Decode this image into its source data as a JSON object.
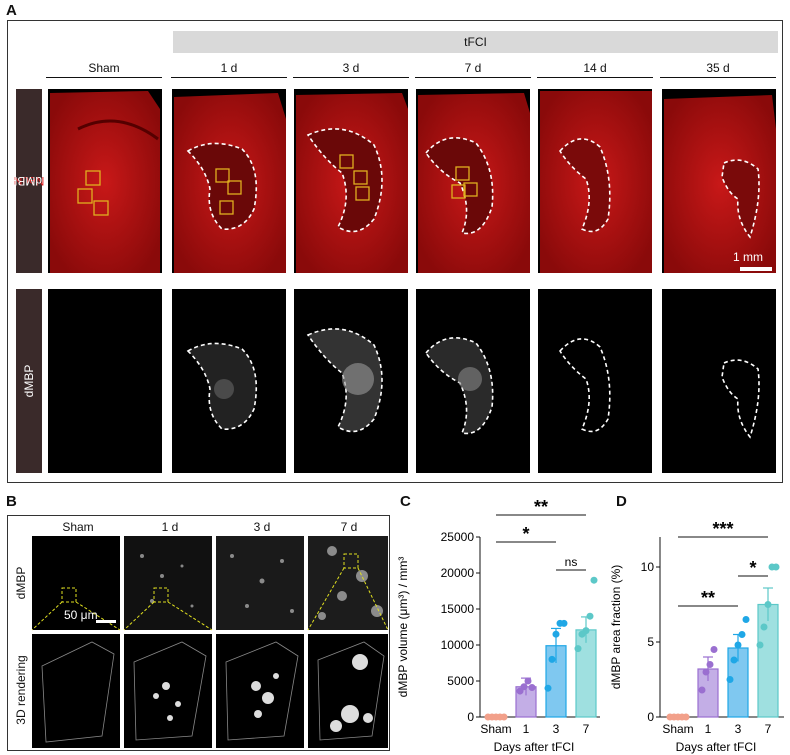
{
  "panels": {
    "a": "A",
    "b": "B",
    "c": "C",
    "d": "D"
  },
  "panelA": {
    "group_label": "tFCI",
    "columns": [
      "Sham",
      "1 d",
      "3 d",
      "7 d",
      "14 d",
      "35 d"
    ],
    "row1_label_red": "NeuN",
    "row1_label_white": " / dMBP",
    "row2_label": "dMBP",
    "scale_bar": "1 mm",
    "colors": {
      "neun": "#d81b1b",
      "dmbp": "#ffffff",
      "roi": "#e0b020"
    }
  },
  "panelB": {
    "columns": [
      "Sham",
      "1 d",
      "3 d",
      "7 d"
    ],
    "row1_label": "dMBP",
    "row2_label": "3D rendering",
    "scale_bar": "50 μm"
  },
  "chart_data": [
    {
      "type": "bar",
      "panel": "C",
      "categories": [
        "Sham",
        "1",
        "3",
        "7"
      ],
      "values": [
        0,
        4200,
        9900,
        12100
      ],
      "errors": [
        0,
        1200,
        2400,
        1800
      ],
      "points": [
        [
          0,
          0,
          0,
          0,
          0
        ],
        [
          3600,
          4200,
          5000,
          4100
        ],
        [
          4000,
          8000,
          11500,
          13000,
          13000
        ],
        [
          9500,
          11500,
          12000,
          14000,
          19000
        ]
      ],
      "xlabel": "Days after tFCI",
      "ylabel": "dMBP volume (μm³) / mm³",
      "ylim": [
        0,
        25000
      ],
      "yticks": [
        0,
        5000,
        10000,
        15000,
        20000,
        25000
      ],
      "bar_colors": [
        "#f2a08a",
        "#c3aee6",
        "#7fc8f0",
        "#9fe0e0"
      ],
      "point_colors": [
        "#f2a08a",
        "#9a6fd0",
        "#1fa7e6",
        "#5cc8c8"
      ],
      "significance": [
        {
          "from": "Sham",
          "to": "7",
          "label": "**"
        },
        {
          "from": "Sham",
          "to": "3",
          "label": "*"
        },
        {
          "from": "3",
          "to": "7",
          "label": "ns"
        }
      ]
    },
    {
      "type": "bar",
      "panel": "D",
      "categories": [
        "Sham",
        "1",
        "3",
        "7"
      ],
      "values": [
        0,
        3.2,
        4.6,
        7.5
      ],
      "errors": [
        0,
        0.8,
        0.9,
        1.1
      ],
      "points": [
        [
          0,
          0,
          0,
          0,
          0
        ],
        [
          1.8,
          3.0,
          3.5,
          4.5
        ],
        [
          2.5,
          3.8,
          4.8,
          5.5,
          6.5
        ],
        [
          4.8,
          6.0,
          7.5,
          10.0,
          10.0
        ]
      ],
      "xlabel": "Days after tFCI",
      "ylabel": "dMBP area fraction (%)",
      "ylim": [
        0,
        12
      ],
      "yticks": [
        0,
        5,
        10
      ],
      "bar_colors": [
        "#f2a08a",
        "#c3aee6",
        "#7fc8f0",
        "#9fe0e0"
      ],
      "point_colors": [
        "#f2a08a",
        "#9a6fd0",
        "#1fa7e6",
        "#5cc8c8"
      ],
      "significance": [
        {
          "from": "Sham",
          "to": "7",
          "label": "***"
        },
        {
          "from": "3",
          "to": "7",
          "label": "*"
        },
        {
          "from": "Sham",
          "to": "3",
          "label": "**"
        }
      ]
    }
  ]
}
